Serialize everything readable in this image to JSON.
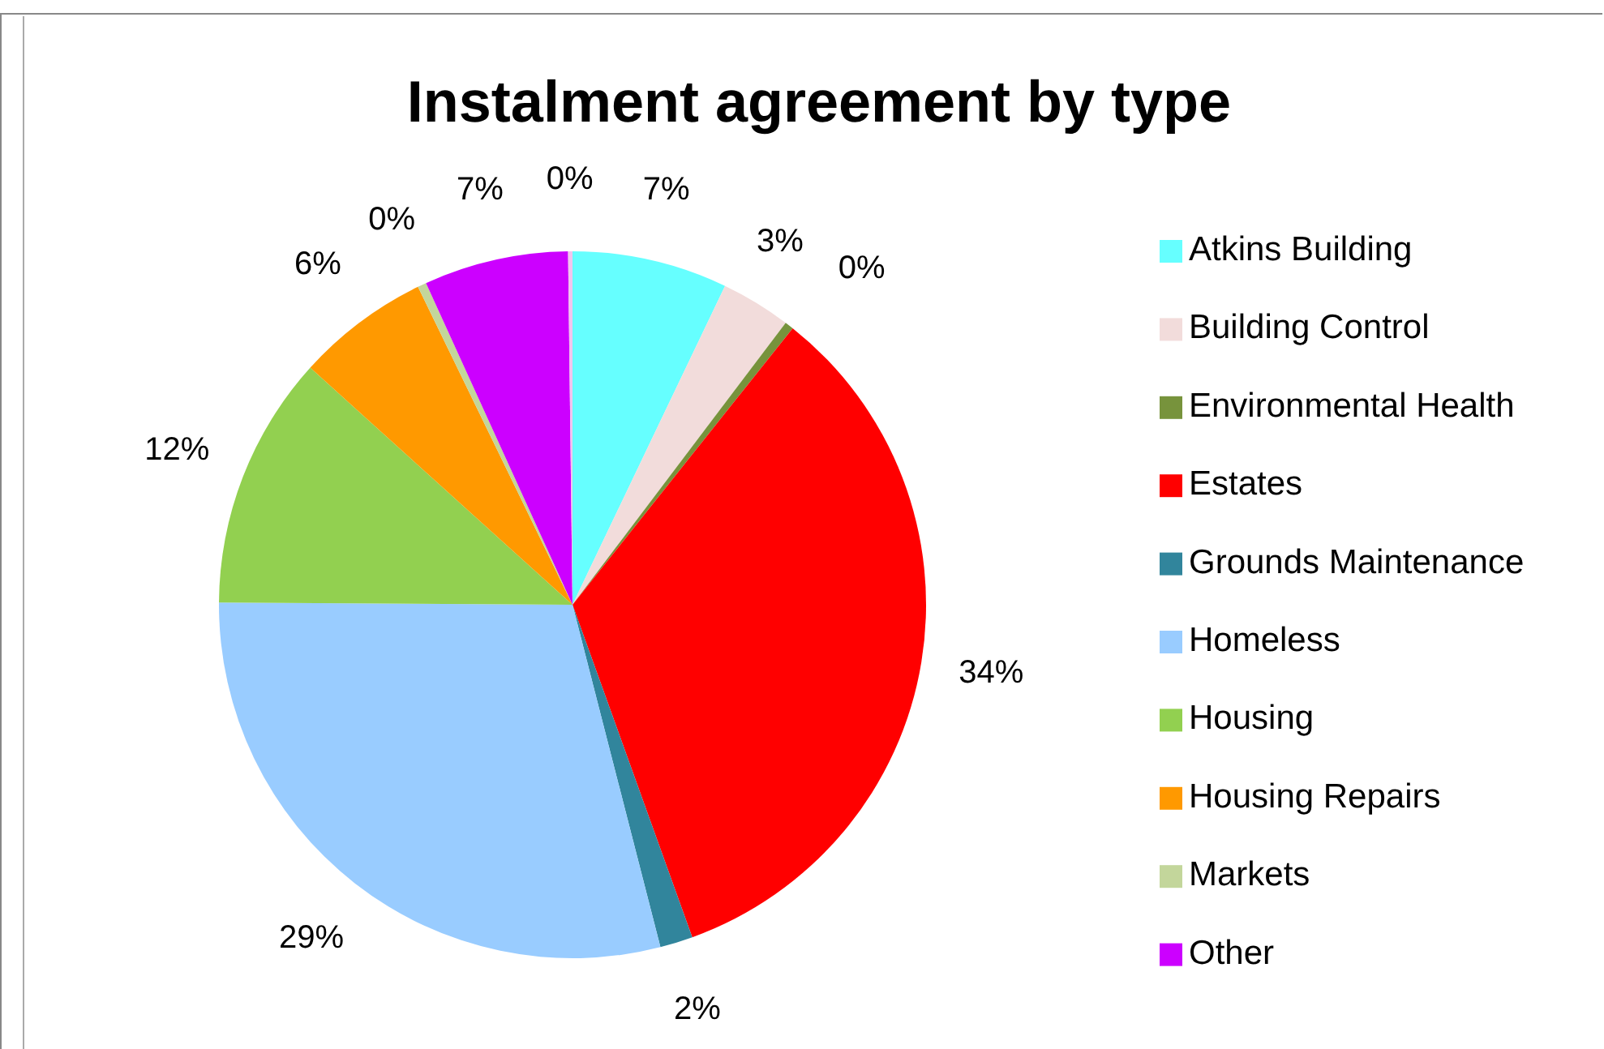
{
  "chart_data": {
    "type": "pie",
    "title": "Instalment agreement by type",
    "categories": [
      "Atkins Building",
      "Building Control",
      "Environmental Health",
      "Estates",
      "Grounds Maintenance",
      "Homeless",
      "Housing",
      "Housing Repairs",
      "Markets",
      "Other",
      null
    ],
    "values": [
      7.1,
      3.2,
      0.4,
      33.8,
      1.5,
      29.1,
      11.6,
      6.1,
      0.4,
      6.6,
      0.2
    ],
    "value_labels": [
      "7%",
      "3%",
      "0%",
      "34%",
      "2%",
      "29%",
      "12%",
      "6%",
      "0%",
      "7%",
      "0%"
    ],
    "colors": [
      "#66ffff",
      "#f2dcdb",
      "#77933c",
      "#ff0000",
      "#31859c",
      "#99ccff",
      "#92d050",
      "#ff9900",
      "#c3d69b",
      "#cc00ff",
      "#f2c4ee"
    ],
    "legend": "right"
  }
}
